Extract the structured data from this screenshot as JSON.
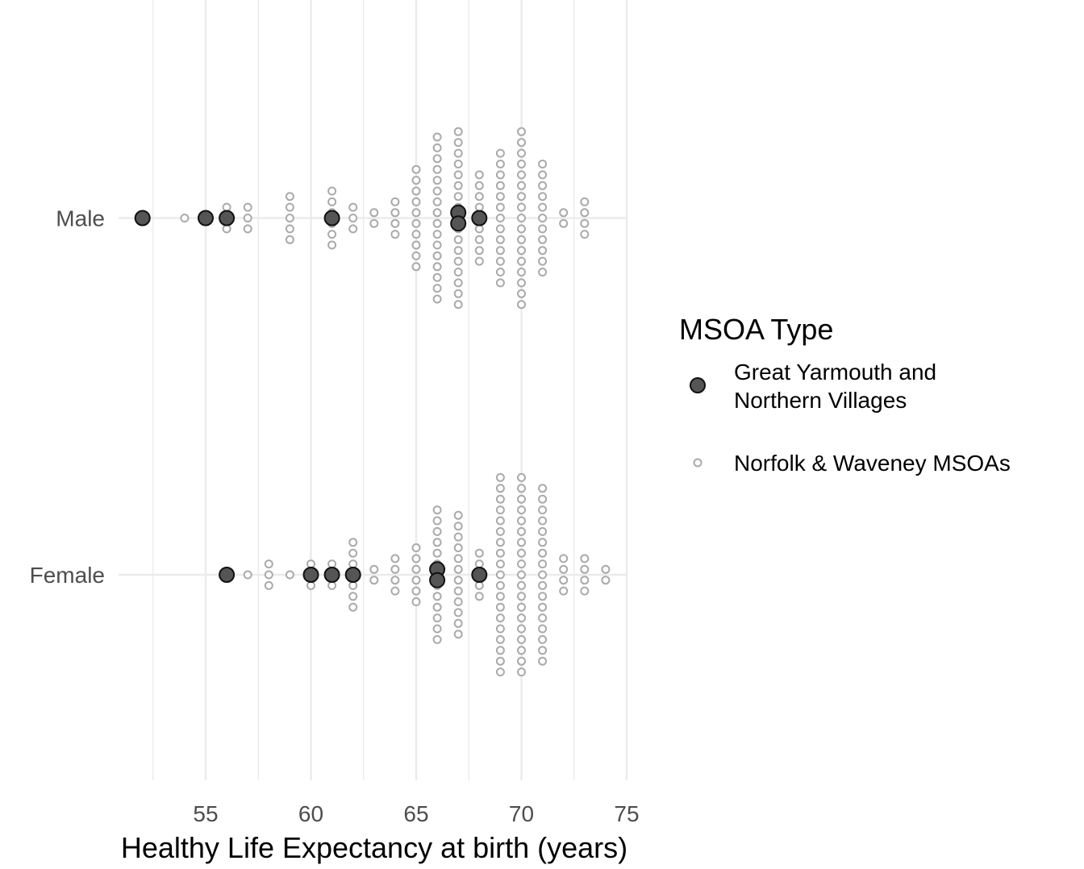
{
  "chart_data": {
    "type": "scatter",
    "subtype": "dot-strip (beeswarm)",
    "xlabel": "Healthy Life Expectancy at birth (years)",
    "ylabel": "",
    "xlim": [
      49.5,
      75
    ],
    "x_ticks": [
      55,
      60,
      65,
      70,
      75
    ],
    "x_tick_labels": [
      "55",
      "60",
      "65",
      "70",
      "75"
    ],
    "categories": [
      "Male",
      "Female"
    ],
    "grid": true,
    "legend": {
      "position": "right",
      "title": "MSOA Type",
      "entries": [
        {
          "label_lines": [
            "Great Yarmouth and",
            "Northern Villages"
          ],
          "marker": "filled-large"
        },
        {
          "label_lines": [
            "Norfolk & Waveney MSOAs"
          ],
          "marker": "open-small"
        }
      ]
    },
    "colors": {
      "highlight_fill": "#555555",
      "highlight_stroke": "#111111",
      "other_stroke": "#aaaaaa",
      "grid": "#ebebeb"
    },
    "series": [
      {
        "name": "Norfolk & Waveney MSOAs",
        "group": "Male",
        "counts": [
          {
            "x": 54,
            "n": 1
          },
          {
            "x": 56,
            "n": 3
          },
          {
            "x": 57,
            "n": 3
          },
          {
            "x": 59,
            "n": 5
          },
          {
            "x": 61,
            "n": 6
          },
          {
            "x": 62,
            "n": 3
          },
          {
            "x": 63,
            "n": 2
          },
          {
            "x": 64,
            "n": 4
          },
          {
            "x": 65,
            "n": 10
          },
          {
            "x": 66,
            "n": 16
          },
          {
            "x": 67,
            "n": 17
          },
          {
            "x": 68,
            "n": 9
          },
          {
            "x": 69,
            "n": 13
          },
          {
            "x": 70,
            "n": 17
          },
          {
            "x": 71,
            "n": 11
          },
          {
            "x": 72,
            "n": 2
          },
          {
            "x": 73,
            "n": 4
          }
        ]
      },
      {
        "name": "Great Yarmouth and Northern Villages",
        "group": "Male",
        "counts": [
          {
            "x": 52,
            "n": 1
          },
          {
            "x": 55,
            "n": 1
          },
          {
            "x": 56,
            "n": 1
          },
          {
            "x": 61,
            "n": 1
          },
          {
            "x": 67,
            "n": 2
          },
          {
            "x": 68,
            "n": 1
          }
        ]
      },
      {
        "name": "Norfolk & Waveney MSOAs",
        "group": "Female",
        "counts": [
          {
            "x": 56,
            "n": 1
          },
          {
            "x": 57,
            "n": 1
          },
          {
            "x": 58,
            "n": 3
          },
          {
            "x": 59,
            "n": 1
          },
          {
            "x": 60,
            "n": 3
          },
          {
            "x": 61,
            "n": 3
          },
          {
            "x": 62,
            "n": 7
          },
          {
            "x": 63,
            "n": 2
          },
          {
            "x": 64,
            "n": 4
          },
          {
            "x": 65,
            "n": 6
          },
          {
            "x": 66,
            "n": 13
          },
          {
            "x": 67,
            "n": 12
          },
          {
            "x": 68,
            "n": 5
          },
          {
            "x": 69,
            "n": 19
          },
          {
            "x": 70,
            "n": 19
          },
          {
            "x": 71,
            "n": 17
          },
          {
            "x": 72,
            "n": 4
          },
          {
            "x": 73,
            "n": 4
          },
          {
            "x": 74,
            "n": 2
          }
        ]
      },
      {
        "name": "Great Yarmouth and Northern Villages",
        "group": "Female",
        "counts": [
          {
            "x": 56,
            "n": 1
          },
          {
            "x": 60,
            "n": 1
          },
          {
            "x": 61,
            "n": 1
          },
          {
            "x": 62,
            "n": 1
          },
          {
            "x": 66,
            "n": 2
          },
          {
            "x": 68,
            "n": 1
          }
        ]
      }
    ]
  }
}
